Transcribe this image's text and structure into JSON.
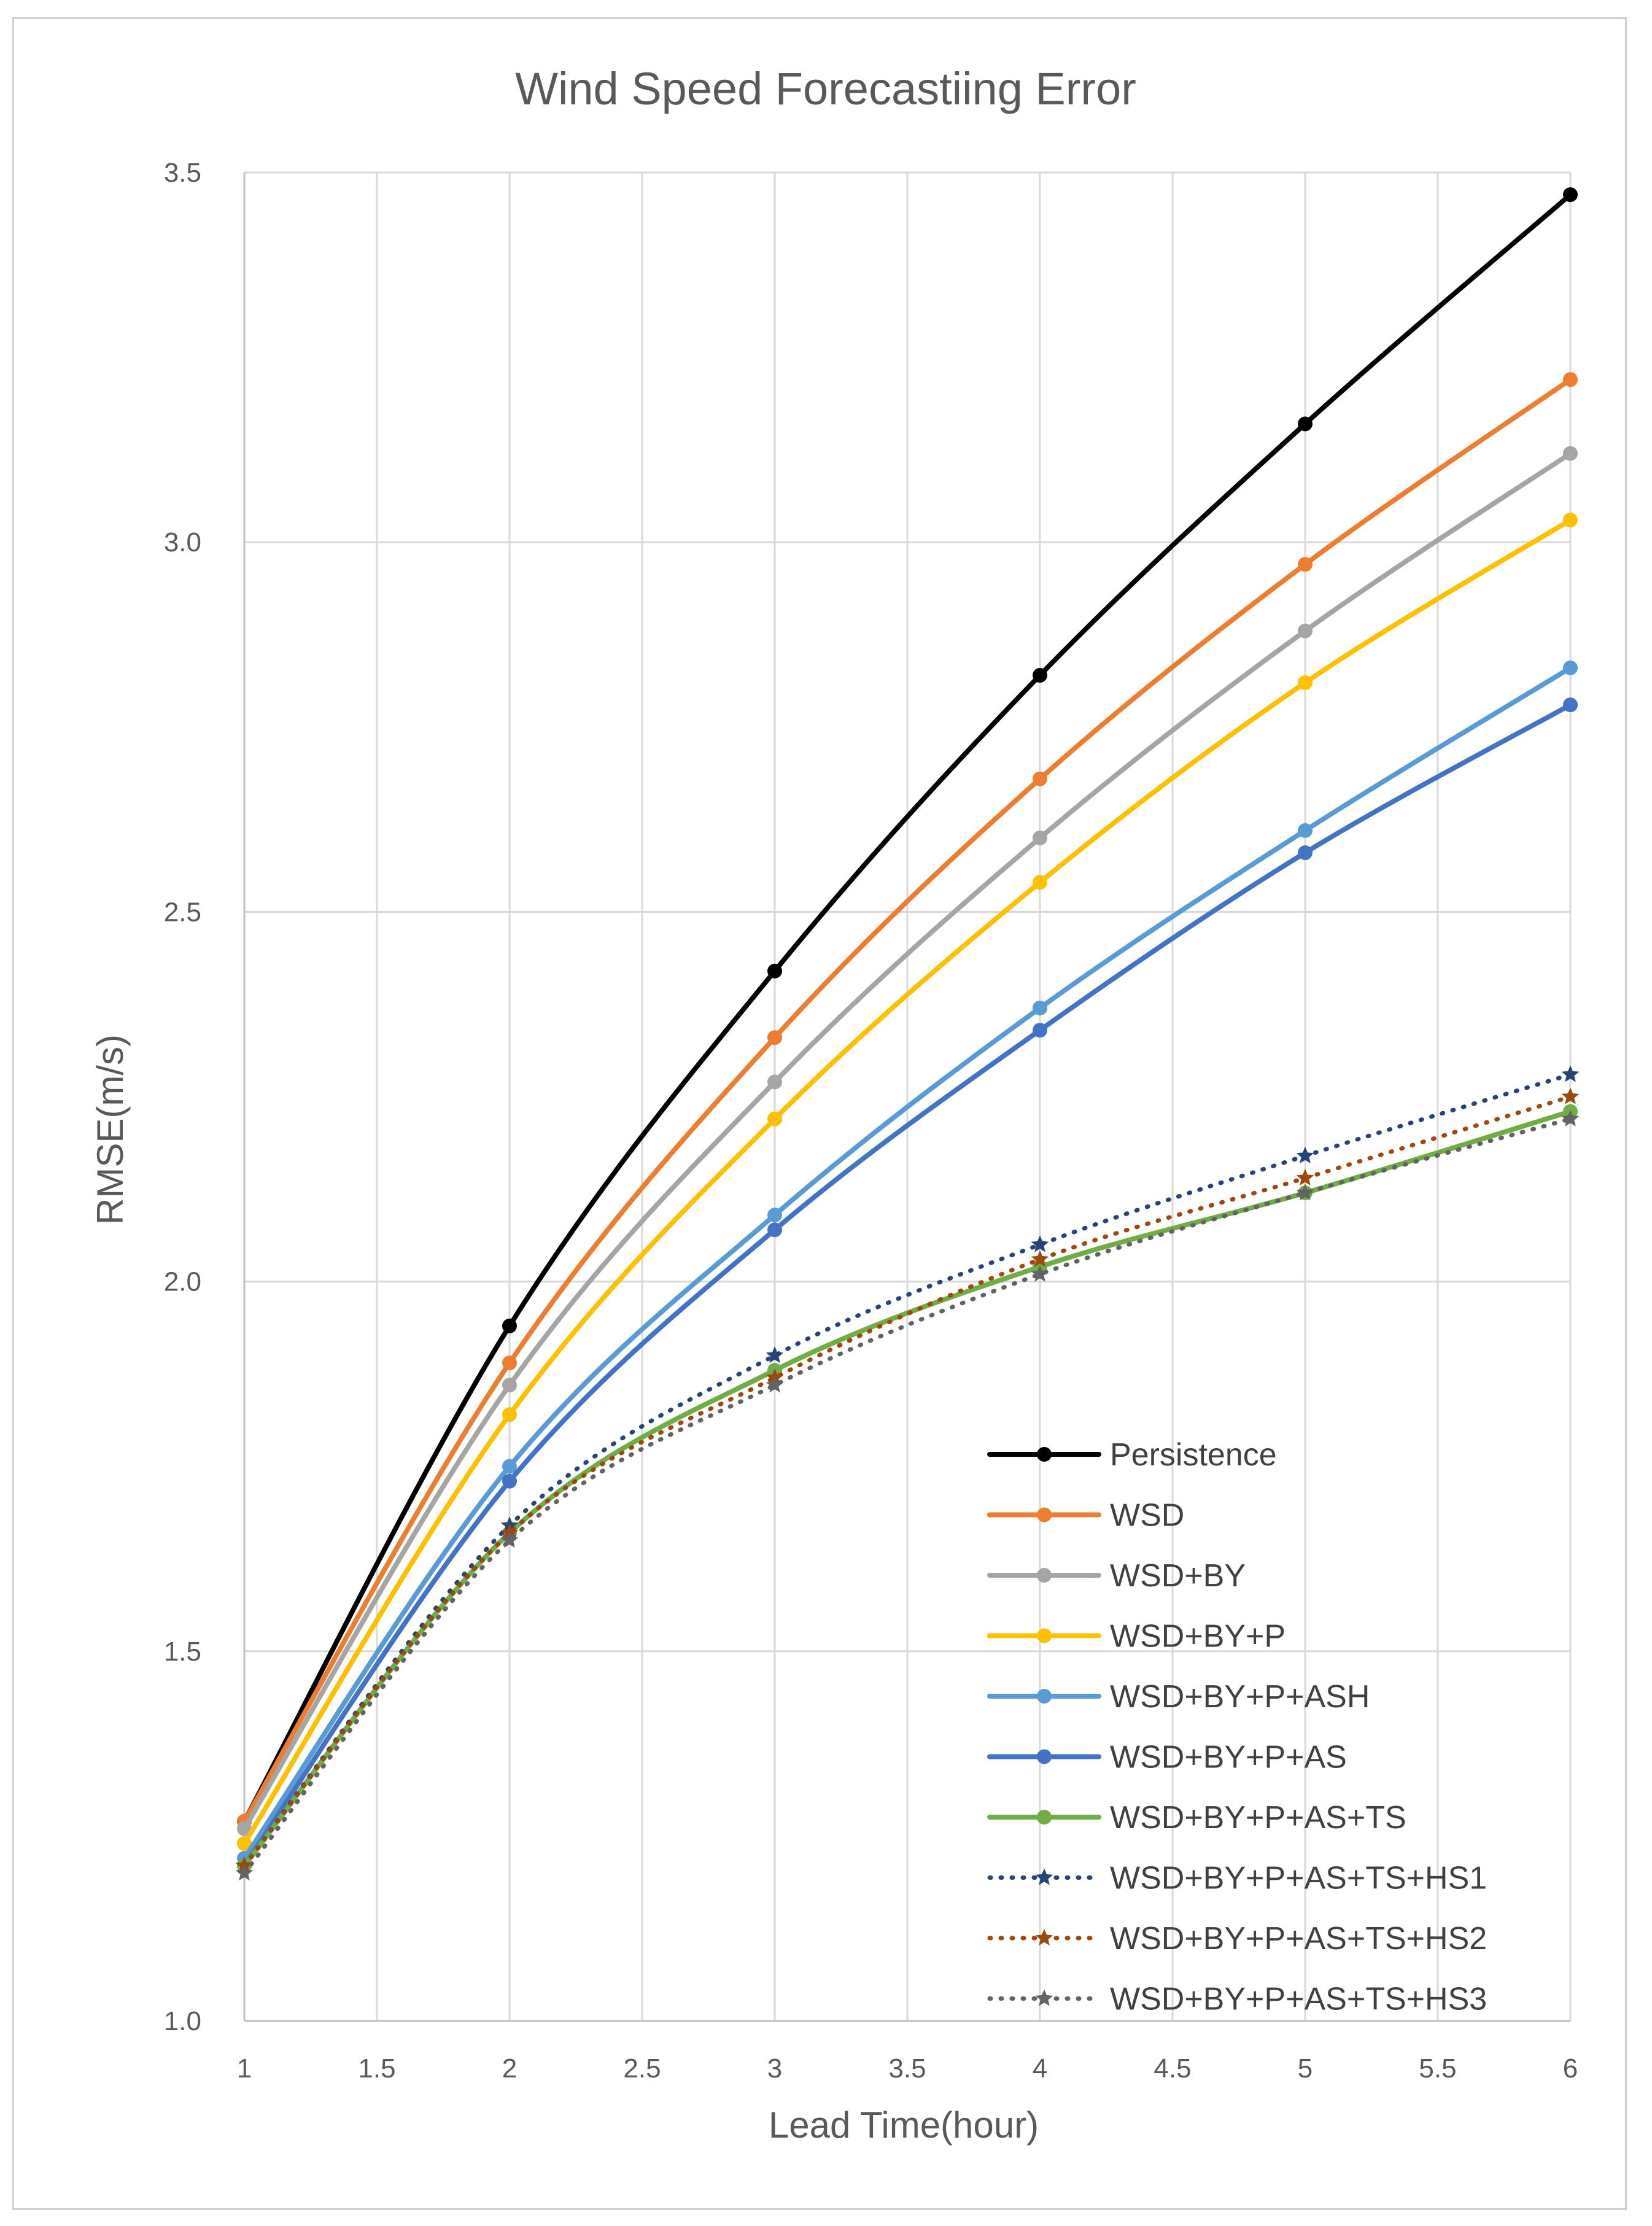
{
  "chart_data": {
    "type": "line",
    "title": "Wind Speed Forecastiing Error",
    "xlabel": "Lead Time(hour)",
    "ylabel": "RMSE(m/s)",
    "xlim": [
      1,
      6
    ],
    "ylim": [
      1.0,
      3.5
    ],
    "x_ticks": [
      "1",
      "1.5",
      "2",
      "2.5",
      "3",
      "3.5",
      "4",
      "4.5",
      "5",
      "5.5",
      "6"
    ],
    "y_ticks": [
      "1.0",
      "1.5",
      "2.0",
      "2.5",
      "3.0",
      "3.5"
    ],
    "grid": true,
    "legend_position": "bottom-right",
    "x": [
      1,
      2,
      3,
      4,
      5,
      6
    ],
    "series": [
      {
        "name": "Persistence",
        "color": "#000000",
        "style": "solid",
        "marker": "circle",
        "values": [
          1.27,
          1.94,
          2.42,
          2.82,
          3.16,
          3.47
        ]
      },
      {
        "name": "WSD",
        "color": "#ED7D31",
        "style": "solid",
        "marker": "circle",
        "values": [
          1.27,
          1.89,
          2.33,
          2.68,
          2.97,
          3.22
        ]
      },
      {
        "name": "WSD+BY",
        "color": "#A5A5A5",
        "style": "solid",
        "marker": "circle",
        "values": [
          1.26,
          1.86,
          2.27,
          2.6,
          2.88,
          3.12
        ]
      },
      {
        "name": "WSD+BY+P",
        "color": "#FFC000",
        "style": "solid",
        "marker": "circle",
        "values": [
          1.24,
          1.82,
          2.22,
          2.54,
          2.81,
          3.03
        ]
      },
      {
        "name": "WSD+BY+P+ASH",
        "color": "#5B9BD5",
        "style": "solid",
        "marker": "circle",
        "values": [
          1.22,
          1.75,
          2.09,
          2.37,
          2.61,
          2.83
        ]
      },
      {
        "name": "WSD+BY+P+AS",
        "color": "#4472C4",
        "style": "solid",
        "marker": "circle",
        "values": [
          1.21,
          1.73,
          2.07,
          2.34,
          2.58,
          2.78
        ]
      },
      {
        "name": "WSD+BY+P+AS+TS",
        "color": "#70AD47",
        "style": "solid",
        "marker": "circle",
        "values": [
          1.21,
          1.66,
          1.88,
          2.02,
          2.12,
          2.23
        ]
      },
      {
        "name": "WSD+BY+P+AS+TS+HS1",
        "color": "#264478",
        "style": "dotted",
        "marker": "star",
        "values": [
          1.21,
          1.67,
          1.9,
          2.05,
          2.17,
          2.28
        ]
      },
      {
        "name": "WSD+BY+P+AS+TS+HS2",
        "color": "#9E480E",
        "style": "dotted",
        "marker": "star",
        "values": [
          1.21,
          1.66,
          1.87,
          2.03,
          2.14,
          2.25
        ]
      },
      {
        "name": "WSD+BY+P+AS+TS+HS3",
        "color": "#636363",
        "style": "dotted",
        "marker": "star",
        "values": [
          1.2,
          1.65,
          1.86,
          2.01,
          2.12,
          2.22
        ]
      }
    ]
  }
}
